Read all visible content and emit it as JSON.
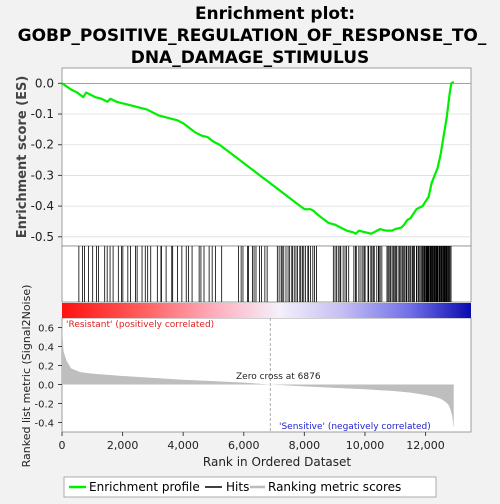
{
  "chart_data": {
    "type": "line",
    "title_lines": [
      "Enrichment plot:",
      "GOBP_POSITIVE_REGULATION_OF_RESPONSE_TO_",
      "DNA_DAMAGE_STIMULUS"
    ],
    "es_ylabel": "Enrichment score (ES)",
    "metric_ylabel": "Ranked list metric (Signal2Noise)",
    "xlabel": "Rank in Ordered Dataset",
    "xlim": [
      0,
      13500
    ],
    "es_ylim": [
      -0.53,
      0.05
    ],
    "metric_ylim": [
      -0.5,
      0.7
    ],
    "x_ticks": [
      0,
      2000,
      4000,
      6000,
      8000,
      10000,
      12000
    ],
    "x_tick_labels": [
      "0",
      "2,000",
      "4,000",
      "6,000",
      "8,000",
      "10,000",
      "12,000"
    ],
    "es_ticks": [
      0.0,
      -0.1,
      -0.2,
      -0.3,
      -0.4,
      -0.5
    ],
    "es_tick_labels": [
      "0.0",
      "-0.1",
      "-0.2",
      "-0.3",
      "-0.4",
      "-0.5"
    ],
    "metric_ticks": [
      0.6,
      0.4,
      0.2,
      0.0,
      -0.2,
      -0.4
    ],
    "metric_tick_labels": [
      "0.6",
      "0.4",
      "0.2",
      "0.0",
      "-0.2",
      "-0.4"
    ],
    "n_genes": 12930,
    "zero_cross": 6876,
    "zero_cross_label": "Zero cross at 6876",
    "resistant_label": "'Resistant' (positively correlated)",
    "sensitive_label": "'Sensitive' (negatively correlated)",
    "es_curve": {
      "x": [
        0,
        300,
        500,
        700,
        800,
        900,
        1100,
        1300,
        1500,
        1600,
        1700,
        1800,
        2000,
        2200,
        2400,
        2600,
        2800,
        3000,
        3200,
        3400,
        3600,
        3800,
        4000,
        4200,
        4400,
        4600,
        4800,
        5000,
        5200,
        5400,
        5600,
        5800,
        6000,
        6200,
        6400,
        6600,
        6800,
        7000,
        7200,
        7400,
        7600,
        7800,
        8000,
        8100,
        8200,
        8300,
        8400,
        8600,
        8800,
        9000,
        9200,
        9400,
        9600,
        9700,
        9800,
        10000,
        10200,
        10300,
        10400,
        10500,
        10700,
        10900,
        11000,
        11200,
        11300,
        11400,
        11500,
        11600,
        11700,
        11800,
        11900,
        12000,
        12100,
        12200,
        12300,
        12400,
        12500,
        12600,
        12700,
        12750,
        12800,
        12850,
        12930
      ],
      "y": [
        0.0,
        -0.02,
        -0.03,
        -0.045,
        -0.03,
        -0.035,
        -0.045,
        -0.05,
        -0.06,
        -0.05,
        -0.055,
        -0.06,
        -0.065,
        -0.07,
        -0.075,
        -0.08,
        -0.085,
        -0.095,
        -0.105,
        -0.11,
        -0.115,
        -0.12,
        -0.13,
        -0.145,
        -0.16,
        -0.17,
        -0.175,
        -0.19,
        -0.2,
        -0.215,
        -0.23,
        -0.245,
        -0.26,
        -0.275,
        -0.29,
        -0.305,
        -0.32,
        -0.335,
        -0.35,
        -0.365,
        -0.38,
        -0.395,
        -0.41,
        -0.41,
        -0.41,
        -0.415,
        -0.425,
        -0.44,
        -0.455,
        -0.46,
        -0.47,
        -0.48,
        -0.485,
        -0.49,
        -0.48,
        -0.485,
        -0.49,
        -0.485,
        -0.48,
        -0.475,
        -0.48,
        -0.48,
        -0.475,
        -0.47,
        -0.46,
        -0.445,
        -0.44,
        -0.425,
        -0.41,
        -0.405,
        -0.4,
        -0.385,
        -0.37,
        -0.325,
        -0.3,
        -0.275,
        -0.23,
        -0.17,
        -0.11,
        -0.07,
        -0.03,
        0.0,
        0.005
      ]
    },
    "hit_groups": [
      {
        "start": 500,
        "end": 3500,
        "count": 26
      },
      {
        "start": 3500,
        "end": 5300,
        "count": 14
      },
      {
        "start": 5800,
        "end": 6800,
        "count": 12
      },
      {
        "start": 7100,
        "end": 8400,
        "count": 24
      },
      {
        "start": 8900,
        "end": 9500,
        "count": 10
      },
      {
        "start": 9600,
        "end": 10600,
        "count": 20
      },
      {
        "start": 10700,
        "end": 11900,
        "count": 32
      },
      {
        "start": 11900,
        "end": 12850,
        "count": 46
      }
    ],
    "metric_curve": {
      "x": [
        0,
        50,
        150,
        300,
        600,
        1000,
        2000,
        3000,
        4000,
        5000,
        6000,
        6876,
        8000,
        9000,
        10000,
        11000,
        11500,
        12000,
        12300,
        12500,
        12650,
        12750,
        12820,
        12880,
        12930
      ],
      "y": [
        0.62,
        0.35,
        0.25,
        0.17,
        0.13,
        0.115,
        0.09,
        0.07,
        0.05,
        0.035,
        0.02,
        0.0,
        -0.02,
        -0.035,
        -0.05,
        -0.07,
        -0.085,
        -0.11,
        -0.13,
        -0.15,
        -0.18,
        -0.21,
        -0.26,
        -0.33,
        -0.46
      ]
    }
  },
  "legend": {
    "items": [
      {
        "label": "Enrichment profile",
        "color": "#00ee00"
      },
      {
        "label": "Hits",
        "color": "#000000"
      },
      {
        "label": "Ranking metric scores",
        "color": "#bbbbbb"
      }
    ]
  },
  "colors": {
    "es_line": "#00ee00",
    "metric_fill": "#bebebe",
    "resistant_text": "#dd2222",
    "sensitive_text": "#2222cc",
    "zero_line": "#aaaaaa"
  }
}
